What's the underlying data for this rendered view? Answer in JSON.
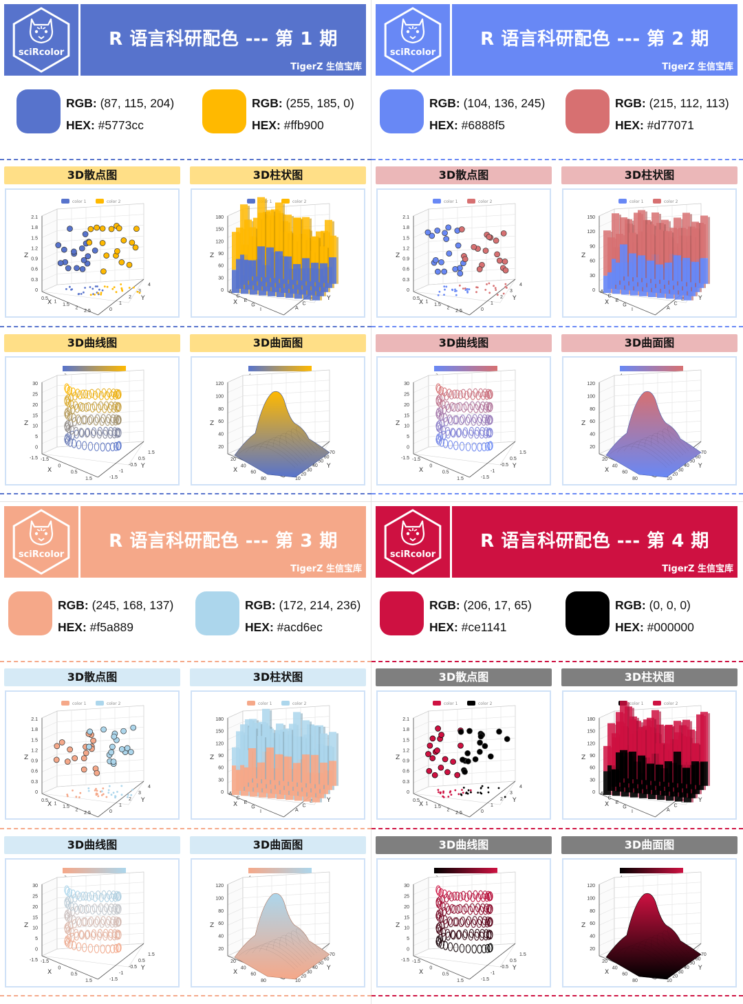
{
  "panels": [
    {
      "title": "R 语言科研配色 --- 第 1 期",
      "subtitle": "TigerZ 生信宝库",
      "logo_text": "sciRcolor",
      "header_color": "#5773cc",
      "dash_color": "#5773cc",
      "tag_color": "#ffdf87",
      "tag_text_color": "#111111",
      "color1": {
        "rgb_label": "RGB:",
        "rgb": " (87, 115, 204)",
        "hex_label": "HEX:",
        "hex": " #5773cc",
        "value": "#5773cc"
      },
      "color2": {
        "rgb_label": "RGB:",
        "rgb": " (255, 185, 0)",
        "hex_label": "HEX:",
        "hex": " #ffb900",
        "value": "#ffb900"
      },
      "plots": {
        "scatter": "3D散点图",
        "bar": "3D柱状图",
        "line": "3D曲线图",
        "surface": "3D曲面图"
      },
      "legend": {
        "c1": "color 1",
        "c2": "color 2"
      }
    },
    {
      "title": "R 语言科研配色 --- 第 2 期",
      "subtitle": "TigerZ 生信宝库",
      "logo_text": "sciRcolor",
      "header_color": "#6888f5",
      "dash_color": "#6888f5",
      "tag_color": "#ebb7b8",
      "tag_text_color": "#111111",
      "color1": {
        "rgb_label": "RGB:",
        "rgb": " (104, 136, 245)",
        "hex_label": "HEX:",
        "hex": " #6888f5",
        "value": "#6888f5"
      },
      "color2": {
        "rgb_label": "RGB:",
        "rgb": " (215, 112, 113)",
        "hex_label": "HEX:",
        "hex": " #d77071",
        "value": "#d77071"
      },
      "plots": {
        "scatter": "3D散点图",
        "bar": "3D柱状图",
        "line": "3D曲线图",
        "surface": "3D曲面图"
      },
      "legend": {
        "c1": "color 1",
        "c2": "color 2"
      }
    },
    {
      "title": "R 语言科研配色 --- 第 3 期",
      "subtitle": "TigerZ 生信宝库",
      "logo_text": "sciRcolor",
      "header_color": "#f5a889",
      "dash_color": "#f5a889",
      "tag_color": "#d6eaf6",
      "tag_text_color": "#111111",
      "color1": {
        "rgb_label": "RGB:",
        "rgb": " (245, 168, 137)",
        "hex_label": "HEX:",
        "hex": " #f5a889",
        "value": "#f5a889"
      },
      "color2": {
        "rgb_label": "RGB:",
        "rgb": " (172, 214, 236)",
        "hex_label": "HEX:",
        "hex": " #acd6ec",
        "value": "#acd6ec"
      },
      "plots": {
        "scatter": "3D散点图",
        "bar": "3D柱状图",
        "line": "3D曲线图",
        "surface": "3D曲面图"
      },
      "legend": {
        "c1": "color 1",
        "c2": "color 2"
      }
    },
    {
      "title": "R 语言科研配色 --- 第 4 期",
      "subtitle": "TigerZ 生信宝库",
      "logo_text": "sciRcolor",
      "header_color": "#ce1141",
      "dash_color": "#ce1141",
      "tag_color": "#7f7f7f",
      "tag_text_color": "#ffffff",
      "color1": {
        "rgb_label": "RGB:",
        "rgb": " (206, 17, 65)",
        "hex_label": "HEX:",
        "hex": " #ce1141",
        "value": "#ce1141"
      },
      "color2": {
        "rgb_label": "RGB:",
        "rgb": " (0, 0, 0)",
        "hex_label": "HEX:",
        "hex": " #000000",
        "value": "#000000"
      },
      "plots": {
        "scatter": "3D散点图",
        "bar": "3D柱状图",
        "line": "3D曲线图",
        "surface": "3D曲面图"
      },
      "legend": {
        "c1": "color 1",
        "c2": "color 2"
      }
    }
  ],
  "axes": {
    "scatter_z_ticks": [
      "2.1",
      "1.8",
      "1.5",
      "1.2",
      "0.9",
      "0.6",
      "0.3",
      "0"
    ],
    "scatter_x_ticks": [
      "0.5",
      "1",
      "1.5",
      "2",
      "2.5"
    ],
    "scatter_y_ticks": [
      "0",
      "1",
      "2",
      "3",
      "4"
    ],
    "bar_z_ticks_a": [
      "180",
      "150",
      "120",
      "90",
      "60",
      "30",
      "0"
    ],
    "bar_z_ticks_b": [
      "150",
      "120",
      "90",
      "60",
      "30",
      "0"
    ],
    "bar_x_ticks": [
      "A",
      "C",
      "E",
      "G",
      "I"
    ],
    "bar_y_ticks": [
      "A",
      "C",
      "E",
      "G",
      "I"
    ],
    "line_z_ticks": [
      "30",
      "25",
      "20",
      "15",
      "10",
      "5",
      "0",
      "-1.5"
    ],
    "line_x_ticks": [
      "-1.5",
      "0",
      "0.5",
      "1.5"
    ],
    "line_y_ticks": [
      "-1.5",
      "-1",
      "-0.5",
      "0.5",
      "1.5"
    ],
    "line_scale": [
      "-2",
      "27"
    ],
    "surf_z_ticks": [
      "120",
      "100",
      "80",
      "60",
      "40",
      "20"
    ],
    "surf_x_ticks": [
      "20",
      "40",
      "60",
      "80"
    ],
    "surf_y_ticks": [
      "10",
      "20",
      "30",
      "40",
      "50",
      "60",
      "70"
    ],
    "surf_scale": [
      "4",
      "105"
    ],
    "x_label": "X",
    "y_label": "Y",
    "z_label": "Z"
  }
}
